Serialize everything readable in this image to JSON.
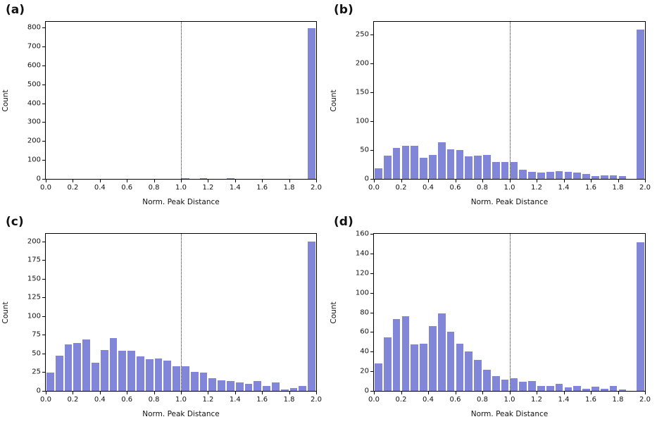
{
  "figure": {
    "background": "#ffffff",
    "layout": "2x2-grid-of-histograms"
  },
  "colors": {
    "bar_fill": "#8186d8",
    "bar_edge": "#ffffff",
    "axis": "#000000",
    "vline": "#222222"
  },
  "chart_data": [
    {
      "type": "bar",
      "panel_label": "(a)",
      "xlabel": "Norm. Peak Distance",
      "ylabel": "Count",
      "xlim": [
        0,
        2
      ],
      "ylim": [
        0,
        830
      ],
      "xticks": [
        0.0,
        0.2,
        0.4,
        0.6,
        0.8,
        1.0,
        1.2,
        1.4,
        1.6,
        1.8,
        2.0
      ],
      "yticks": [
        0,
        100,
        200,
        300,
        400,
        500,
        600,
        700,
        800
      ],
      "bin_start": 0,
      "bin_width": 0.066667,
      "vline_x": 1.0,
      "grid": false,
      "legend": false,
      "values": [
        0,
        0,
        0,
        0,
        0,
        0,
        0,
        0,
        0,
        0,
        0,
        0,
        0,
        0,
        0,
        6,
        5,
        6,
        5,
        5,
        6,
        5,
        4,
        5,
        3,
        4,
        3,
        2,
        2,
        800
      ]
    },
    {
      "type": "bar",
      "panel_label": "(b)",
      "xlabel": "Norm. Peak Distance",
      "ylabel": "Count",
      "xlim": [
        0,
        2
      ],
      "ylim": [
        0,
        272
      ],
      "xticks": [
        0.0,
        0.2,
        0.4,
        0.6,
        0.8,
        1.0,
        1.2,
        1.4,
        1.6,
        1.8,
        2.0
      ],
      "yticks": [
        0,
        50,
        100,
        150,
        200,
        250
      ],
      "bin_start": 0,
      "bin_width": 0.066667,
      "vline_x": 1.0,
      "grid": false,
      "legend": false,
      "values": [
        20,
        42,
        55,
        58,
        59,
        38,
        43,
        65,
        52,
        51,
        40,
        42,
        43,
        31,
        30,
        30,
        17,
        13,
        12,
        13,
        15,
        13,
        12,
        10,
        6,
        7,
        7,
        6,
        0,
        260
      ]
    },
    {
      "type": "bar",
      "panel_label": "(c)",
      "xlabel": "Norm. Peak Distance",
      "ylabel": "Count",
      "xlim": [
        0,
        2
      ],
      "ylim": [
        0,
        210
      ],
      "xticks": [
        0.0,
        0.2,
        0.4,
        0.6,
        0.8,
        1.0,
        1.2,
        1.4,
        1.6,
        1.8,
        2.0
      ],
      "yticks": [
        0,
        25,
        50,
        75,
        100,
        125,
        150,
        175,
        200
      ],
      "bin_start": 0,
      "bin_width": 0.066667,
      "vline_x": 1.0,
      "grid": false,
      "legend": false,
      "values": [
        25,
        48,
        63,
        65,
        70,
        39,
        56,
        72,
        55,
        55,
        47,
        43,
        44,
        41,
        34,
        34,
        26,
        25,
        18,
        15,
        14,
        12,
        10,
        14,
        8,
        12,
        3,
        5,
        8,
        201
      ]
    },
    {
      "type": "bar",
      "panel_label": "(d)",
      "xlabel": "Norm. Peak Distance",
      "ylabel": "Count",
      "xlim": [
        0,
        2
      ],
      "ylim": [
        0,
        160
      ],
      "xticks": [
        0.0,
        0.2,
        0.4,
        0.6,
        0.8,
        1.0,
        1.2,
        1.4,
        1.6,
        1.8,
        2.0
      ],
      "yticks": [
        0,
        20,
        40,
        60,
        80,
        100,
        120,
        140,
        160
      ],
      "bin_start": 0,
      "bin_width": 0.066667,
      "vline_x": 1.0,
      "grid": false,
      "legend": false,
      "values": [
        29,
        55,
        74,
        77,
        48,
        49,
        67,
        80,
        61,
        49,
        41,
        32,
        22,
        16,
        12,
        14,
        10,
        11,
        6,
        6,
        8,
        4,
        6,
        3,
        5,
        3,
        6,
        2,
        0,
        152
      ]
    }
  ]
}
